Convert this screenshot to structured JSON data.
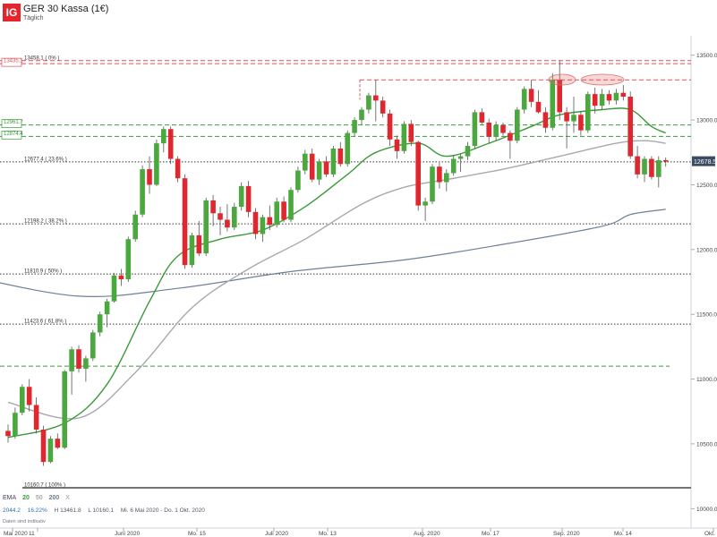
{
  "header": {
    "logo": "IG",
    "title": "GER 30 Kassa (1€)",
    "subtitle": "Täglich"
  },
  "legend": {
    "label": "EMA",
    "periods": [
      "20",
      "50",
      "200"
    ],
    "close_marker": "X",
    "colors": {
      "ema20": "#3a9a3a",
      "ema50": "#a8a8ae",
      "ema200": "#6e7f96"
    }
  },
  "ohlc_info": {
    "open": "2044.2",
    "change": "16.22%",
    "high": "H 13461.8",
    "low": "L 10160.1",
    "range": "Mi. 6 Mai 2020 - Do. 1 Okt. 2020"
  },
  "note": "Daten sind indikativ",
  "chart_data": {
    "type": "candlestick",
    "y_range": [
      9850,
      13650
    ],
    "y_ticks": [
      "10000.0",
      "10500.0",
      "11000.0",
      "11500.0",
      "12000.0",
      "12500.0",
      "13000.0",
      "13500.0"
    ],
    "x_labels": [
      "Mai 2020",
      "11",
      "Juni 2020",
      "Mo. 15",
      "Juli 2020",
      "Mo. 13",
      "Aug. 2020",
      "Mo. 17",
      "Sep. 2020",
      "Mo. 14",
      "Okt. 2"
    ],
    "current_price": "12678.5",
    "levels": [
      {
        "label": "13458.1 ( 0% )",
        "value": 13458,
        "style": "red-dashed"
      },
      {
        "label": "13435.1",
        "value": 13435,
        "style": "red-dashed-boxed"
      },
      {
        "label": "",
        "value": 13310,
        "style": "red-dashed-short"
      },
      {
        "label": "12961.7",
        "value": 12962,
        "style": "green-dashed-boxed"
      },
      {
        "label": "12874.4",
        "value": 12874,
        "style": "green-dashed-boxed"
      },
      {
        "label": "12677.4 ( 23.6% )",
        "value": 12677,
        "style": "black-dotted"
      },
      {
        "label": "12198.2 ( 38.2% )",
        "value": 12198,
        "style": "black-dotted"
      },
      {
        "label": "11810.9 ( 50% )",
        "value": 11811,
        "style": "black-dotted"
      },
      {
        "label": "11423.6 ( 61.8% )",
        "value": 11424,
        "style": "black-dotted"
      },
      {
        "label": "",
        "value": 11100,
        "style": "green-dashed-short"
      },
      {
        "label": "10160.7 ( 100% )",
        "value": 10161,
        "style": "black-solid"
      }
    ],
    "candles": [
      {
        "o": 10600,
        "h": 10650,
        "l": 10510,
        "c": 10560
      },
      {
        "o": 10560,
        "h": 10780,
        "l": 10540,
        "c": 10740
      },
      {
        "o": 10740,
        "h": 10960,
        "l": 10720,
        "c": 10940
      },
      {
        "o": 10940,
        "h": 11000,
        "l": 10750,
        "c": 10800
      },
      {
        "o": 10800,
        "h": 10860,
        "l": 10580,
        "c": 10610
      },
      {
        "o": 10610,
        "h": 10640,
        "l": 10330,
        "c": 10360
      },
      {
        "o": 10360,
        "h": 10560,
        "l": 10350,
        "c": 10540
      },
      {
        "o": 10540,
        "h": 10580,
        "l": 10460,
        "c": 10470
      },
      {
        "o": 10470,
        "h": 11070,
        "l": 10460,
        "c": 11060
      },
      {
        "o": 11060,
        "h": 11250,
        "l": 10880,
        "c": 11230
      },
      {
        "o": 11230,
        "h": 11260,
        "l": 11050,
        "c": 11080
      },
      {
        "o": 11080,
        "h": 11180,
        "l": 10980,
        "c": 11160
      },
      {
        "o": 11160,
        "h": 11380,
        "l": 11140,
        "c": 11360
      },
      {
        "o": 11360,
        "h": 11520,
        "l": 11330,
        "c": 11500
      },
      {
        "o": 11500,
        "h": 11620,
        "l": 11400,
        "c": 11600
      },
      {
        "o": 11600,
        "h": 11820,
        "l": 11590,
        "c": 11800
      },
      {
        "o": 11800,
        "h": 11850,
        "l": 11720,
        "c": 11770
      },
      {
        "o": 11770,
        "h": 12100,
        "l": 11750,
        "c": 12080
      },
      {
        "o": 12080,
        "h": 12300,
        "l": 12060,
        "c": 12270
      },
      {
        "o": 12270,
        "h": 12650,
        "l": 12250,
        "c": 12620
      },
      {
        "o": 12620,
        "h": 12720,
        "l": 12430,
        "c": 12500
      },
      {
        "o": 12500,
        "h": 12850,
        "l": 12490,
        "c": 12820
      },
      {
        "o": 12820,
        "h": 12950,
        "l": 12750,
        "c": 12930
      },
      {
        "o": 12930,
        "h": 12950,
        "l": 12660,
        "c": 12700
      },
      {
        "o": 12700,
        "h": 12720,
        "l": 12520,
        "c": 12550
      },
      {
        "o": 12550,
        "h": 12580,
        "l": 11850,
        "c": 11880
      },
      {
        "o": 11880,
        "h": 12130,
        "l": 11860,
        "c": 12110
      },
      {
        "o": 12110,
        "h": 12220,
        "l": 11950,
        "c": 11970
      },
      {
        "o": 11970,
        "h": 12400,
        "l": 11950,
        "c": 12380
      },
      {
        "o": 12380,
        "h": 12420,
        "l": 12180,
        "c": 12280
      },
      {
        "o": 12280,
        "h": 12330,
        "l": 12110,
        "c": 12230
      },
      {
        "o": 12230,
        "h": 12350,
        "l": 12140,
        "c": 12170
      },
      {
        "o": 12170,
        "h": 12360,
        "l": 12150,
        "c": 12330
      },
      {
        "o": 12330,
        "h": 12520,
        "l": 12300,
        "c": 12490
      },
      {
        "o": 12490,
        "h": 12530,
        "l": 12250,
        "c": 12290
      },
      {
        "o": 12290,
        "h": 12320,
        "l": 12080,
        "c": 12120
      },
      {
        "o": 12120,
        "h": 12270,
        "l": 12060,
        "c": 12250
      },
      {
        "o": 12250,
        "h": 12340,
        "l": 12150,
        "c": 12190
      },
      {
        "o": 12190,
        "h": 12400,
        "l": 12170,
        "c": 12370
      },
      {
        "o": 12370,
        "h": 12410,
        "l": 12210,
        "c": 12230
      },
      {
        "o": 12230,
        "h": 12480,
        "l": 12210,
        "c": 12460
      },
      {
        "o": 12460,
        "h": 12640,
        "l": 12440,
        "c": 12610
      },
      {
        "o": 12610,
        "h": 12770,
        "l": 12580,
        "c": 12740
      },
      {
        "o": 12740,
        "h": 12780,
        "l": 12520,
        "c": 12540
      },
      {
        "o": 12540,
        "h": 12700,
        "l": 12500,
        "c": 12680
      },
      {
        "o": 12680,
        "h": 12720,
        "l": 12560,
        "c": 12580
      },
      {
        "o": 12580,
        "h": 12800,
        "l": 12560,
        "c": 12780
      },
      {
        "o": 12780,
        "h": 12830,
        "l": 12640,
        "c": 12660
      },
      {
        "o": 12660,
        "h": 12920,
        "l": 12640,
        "c": 12900
      },
      {
        "o": 12900,
        "h": 13020,
        "l": 12870,
        "c": 13000
      },
      {
        "o": 13000,
        "h": 13100,
        "l": 12960,
        "c": 13080
      },
      {
        "o": 13080,
        "h": 13210,
        "l": 13050,
        "c": 13190
      },
      {
        "o": 13190,
        "h": 13310,
        "l": 12990,
        "c": 13150
      },
      {
        "o": 13150,
        "h": 13180,
        "l": 13020,
        "c": 13050
      },
      {
        "o": 13050,
        "h": 13080,
        "l": 12800,
        "c": 12850
      },
      {
        "o": 12850,
        "h": 12880,
        "l": 12700,
        "c": 12760
      },
      {
        "o": 12760,
        "h": 12990,
        "l": 12740,
        "c": 12970
      },
      {
        "o": 12970,
        "h": 13000,
        "l": 12800,
        "c": 12830
      },
      {
        "o": 12830,
        "h": 12840,
        "l": 12300,
        "c": 12340
      },
      {
        "o": 12340,
        "h": 12400,
        "l": 12220,
        "c": 12370
      },
      {
        "o": 12370,
        "h": 12660,
        "l": 12350,
        "c": 12640
      },
      {
        "o": 12640,
        "h": 12670,
        "l": 12470,
        "c": 12520
      },
      {
        "o": 12520,
        "h": 12620,
        "l": 12450,
        "c": 12590
      },
      {
        "o": 12590,
        "h": 12730,
        "l": 12570,
        "c": 12700
      },
      {
        "o": 12700,
        "h": 12740,
        "l": 12600,
        "c": 12720
      },
      {
        "o": 12720,
        "h": 12830,
        "l": 12690,
        "c": 12800
      },
      {
        "o": 12800,
        "h": 13080,
        "l": 12780,
        "c": 13060
      },
      {
        "o": 13060,
        "h": 13090,
        "l": 12960,
        "c": 12980
      },
      {
        "o": 12980,
        "h": 13010,
        "l": 12820,
        "c": 12870
      },
      {
        "o": 12870,
        "h": 12990,
        "l": 12840,
        "c": 12960
      },
      {
        "o": 12960,
        "h": 12980,
        "l": 12880,
        "c": 12900
      },
      {
        "o": 12900,
        "h": 12920,
        "l": 12700,
        "c": 12840
      },
      {
        "o": 12840,
        "h": 13100,
        "l": 12820,
        "c": 13080
      },
      {
        "o": 13080,
        "h": 13260,
        "l": 13050,
        "c": 13240
      },
      {
        "o": 13240,
        "h": 13310,
        "l": 13100,
        "c": 13140
      },
      {
        "o": 13140,
        "h": 13230,
        "l": 13050,
        "c": 13060
      },
      {
        "o": 13060,
        "h": 13100,
        "l": 12900,
        "c": 12940
      },
      {
        "o": 12940,
        "h": 13360,
        "l": 12920,
        "c": 13310
      },
      {
        "o": 13310,
        "h": 13460,
        "l": 13000,
        "c": 13060
      },
      {
        "o": 13060,
        "h": 13100,
        "l": 12780,
        "c": 12990
      },
      {
        "o": 12990,
        "h": 13180,
        "l": 12900,
        "c": 13040
      },
      {
        "o": 13040,
        "h": 13070,
        "l": 12880,
        "c": 12920
      },
      {
        "o": 12920,
        "h": 13220,
        "l": 12900,
        "c": 13200
      },
      {
        "o": 13200,
        "h": 13250,
        "l": 13050,
        "c": 13110
      },
      {
        "o": 13110,
        "h": 13240,
        "l": 13080,
        "c": 13200
      },
      {
        "o": 13200,
        "h": 13230,
        "l": 13120,
        "c": 13150
      },
      {
        "o": 13150,
        "h": 13240,
        "l": 13120,
        "c": 13210
      },
      {
        "o": 13210,
        "h": 13270,
        "l": 13150,
        "c": 13180
      },
      {
        "o": 13180,
        "h": 13220,
        "l": 12700,
        "c": 12720
      },
      {
        "o": 12720,
        "h": 12800,
        "l": 12550,
        "c": 12580
      },
      {
        "o": 12580,
        "h": 12720,
        "l": 12520,
        "c": 12700
      },
      {
        "o": 12700,
        "h": 12720,
        "l": 12540,
        "c": 12560
      },
      {
        "o": 12560,
        "h": 12720,
        "l": 12480,
        "c": 12690
      },
      {
        "o": 12690,
        "h": 12710,
        "l": 12640,
        "c": 12679
      }
    ],
    "ema20": [
      [
        0,
        10550
      ],
      [
        8,
        10660
      ],
      [
        14,
        10960
      ],
      [
        20,
        11600
      ],
      [
        24,
        11950
      ],
      [
        30,
        12080
      ],
      [
        36,
        12150
      ],
      [
        42,
        12330
      ],
      [
        48,
        12580
      ],
      [
        52,
        12750
      ],
      [
        58,
        12820
      ],
      [
        62,
        12720
      ],
      [
        68,
        12820
      ],
      [
        74,
        12950
      ],
      [
        78,
        13040
      ],
      [
        84,
        13080
      ],
      [
        88,
        13080
      ],
      [
        91,
        12950
      ],
      [
        93,
        12900
      ]
    ],
    "ema50": [
      [
        0,
        10820
      ],
      [
        10,
        10700
      ],
      [
        18,
        11050
      ],
      [
        26,
        11550
      ],
      [
        34,
        11850
      ],
      [
        42,
        12080
      ],
      [
        50,
        12350
      ],
      [
        56,
        12480
      ],
      [
        62,
        12540
      ],
      [
        70,
        12620
      ],
      [
        78,
        12720
      ],
      [
        86,
        12820
      ],
      [
        90,
        12840
      ],
      [
        93,
        12820
      ]
    ],
    "ema200": [
      [
        -6,
        11800
      ],
      [
        10,
        11640
      ],
      [
        24,
        11700
      ],
      [
        40,
        11830
      ],
      [
        56,
        11920
      ],
      [
        70,
        12040
      ],
      [
        84,
        12180
      ],
      [
        88,
        12270
      ],
      [
        93,
        12310
      ]
    ]
  }
}
